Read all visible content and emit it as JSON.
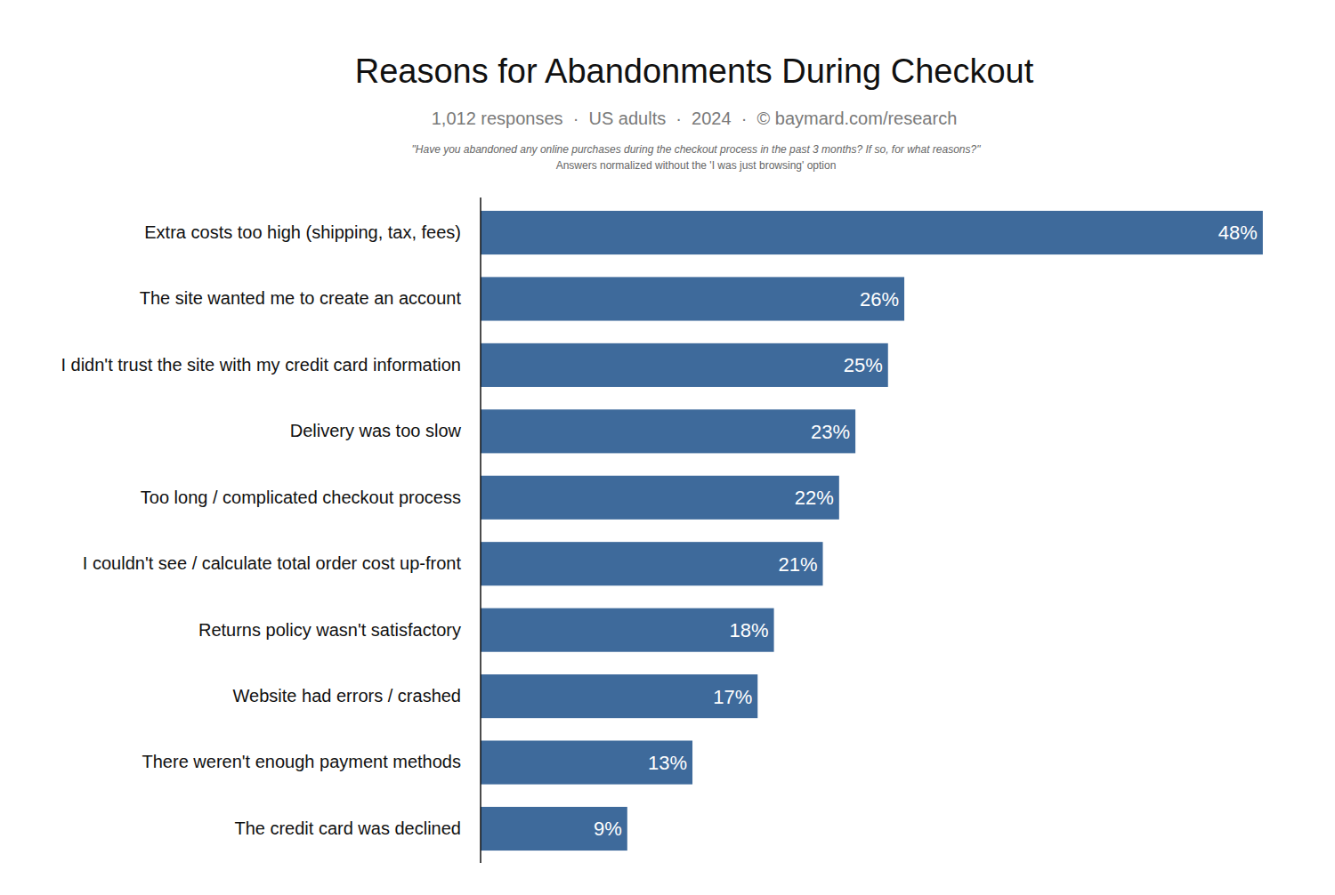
{
  "chart_data": {
    "type": "bar",
    "title": "Reasons for Abandonments During Checkout",
    "subtitle": "1,012 responses  ·  US adults  ·  2024  ·  © baymard.com/research",
    "annotations": [
      "\"Have you abandoned any online purchases during the checkout process in the past 3 months? If so, for what reasons?\"",
      "Answers normalized without the 'I was just browsing' option"
    ],
    "categories": [
      "Extra costs too high (shipping, tax, fees)",
      "The site wanted me to create an account",
      "I didn't trust the site with my credit card information",
      "Delivery was too slow",
      "Too long / complicated checkout process",
      "I couldn't see / calculate total order cost up-front",
      "Returns policy wasn't satisfactory",
      "Website had errors / crashed",
      "There weren't enough payment methods",
      "The credit card was declined"
    ],
    "values": [
      48,
      26,
      25,
      23,
      22,
      21,
      18,
      17,
      13,
      9
    ],
    "value_labels": [
      "48%",
      "26%",
      "25%",
      "23%",
      "22%",
      "21%",
      "18%",
      "17%",
      "13%",
      "9%"
    ],
    "color": "#3e6a9b",
    "orientation": "horizontal",
    "xlim": [
      0,
      48
    ],
    "data_labels": true,
    "tick_labels": "y",
    "grid": false
  }
}
